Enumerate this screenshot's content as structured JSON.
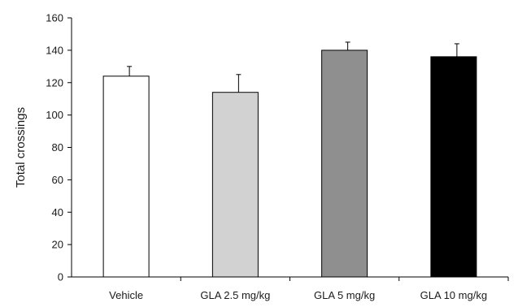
{
  "chart_data": {
    "type": "bar",
    "title": "",
    "xlabel": "",
    "ylabel": "Total crossings",
    "ylim": [
      0,
      160
    ],
    "yticks": [
      0,
      20,
      40,
      60,
      80,
      100,
      120,
      140,
      160
    ],
    "grid": false,
    "categories": [
      "Vehicle",
      "GLA 2.5 mg/kg",
      "GLA 5 mg/kg",
      "GLA 10 mg/kg"
    ],
    "values": [
      124,
      114,
      140,
      136
    ],
    "errors": [
      6,
      11,
      5,
      8
    ],
    "colors": [
      "#ffffff",
      "#d2d2d2",
      "#8f8f8f",
      "#000000"
    ]
  }
}
